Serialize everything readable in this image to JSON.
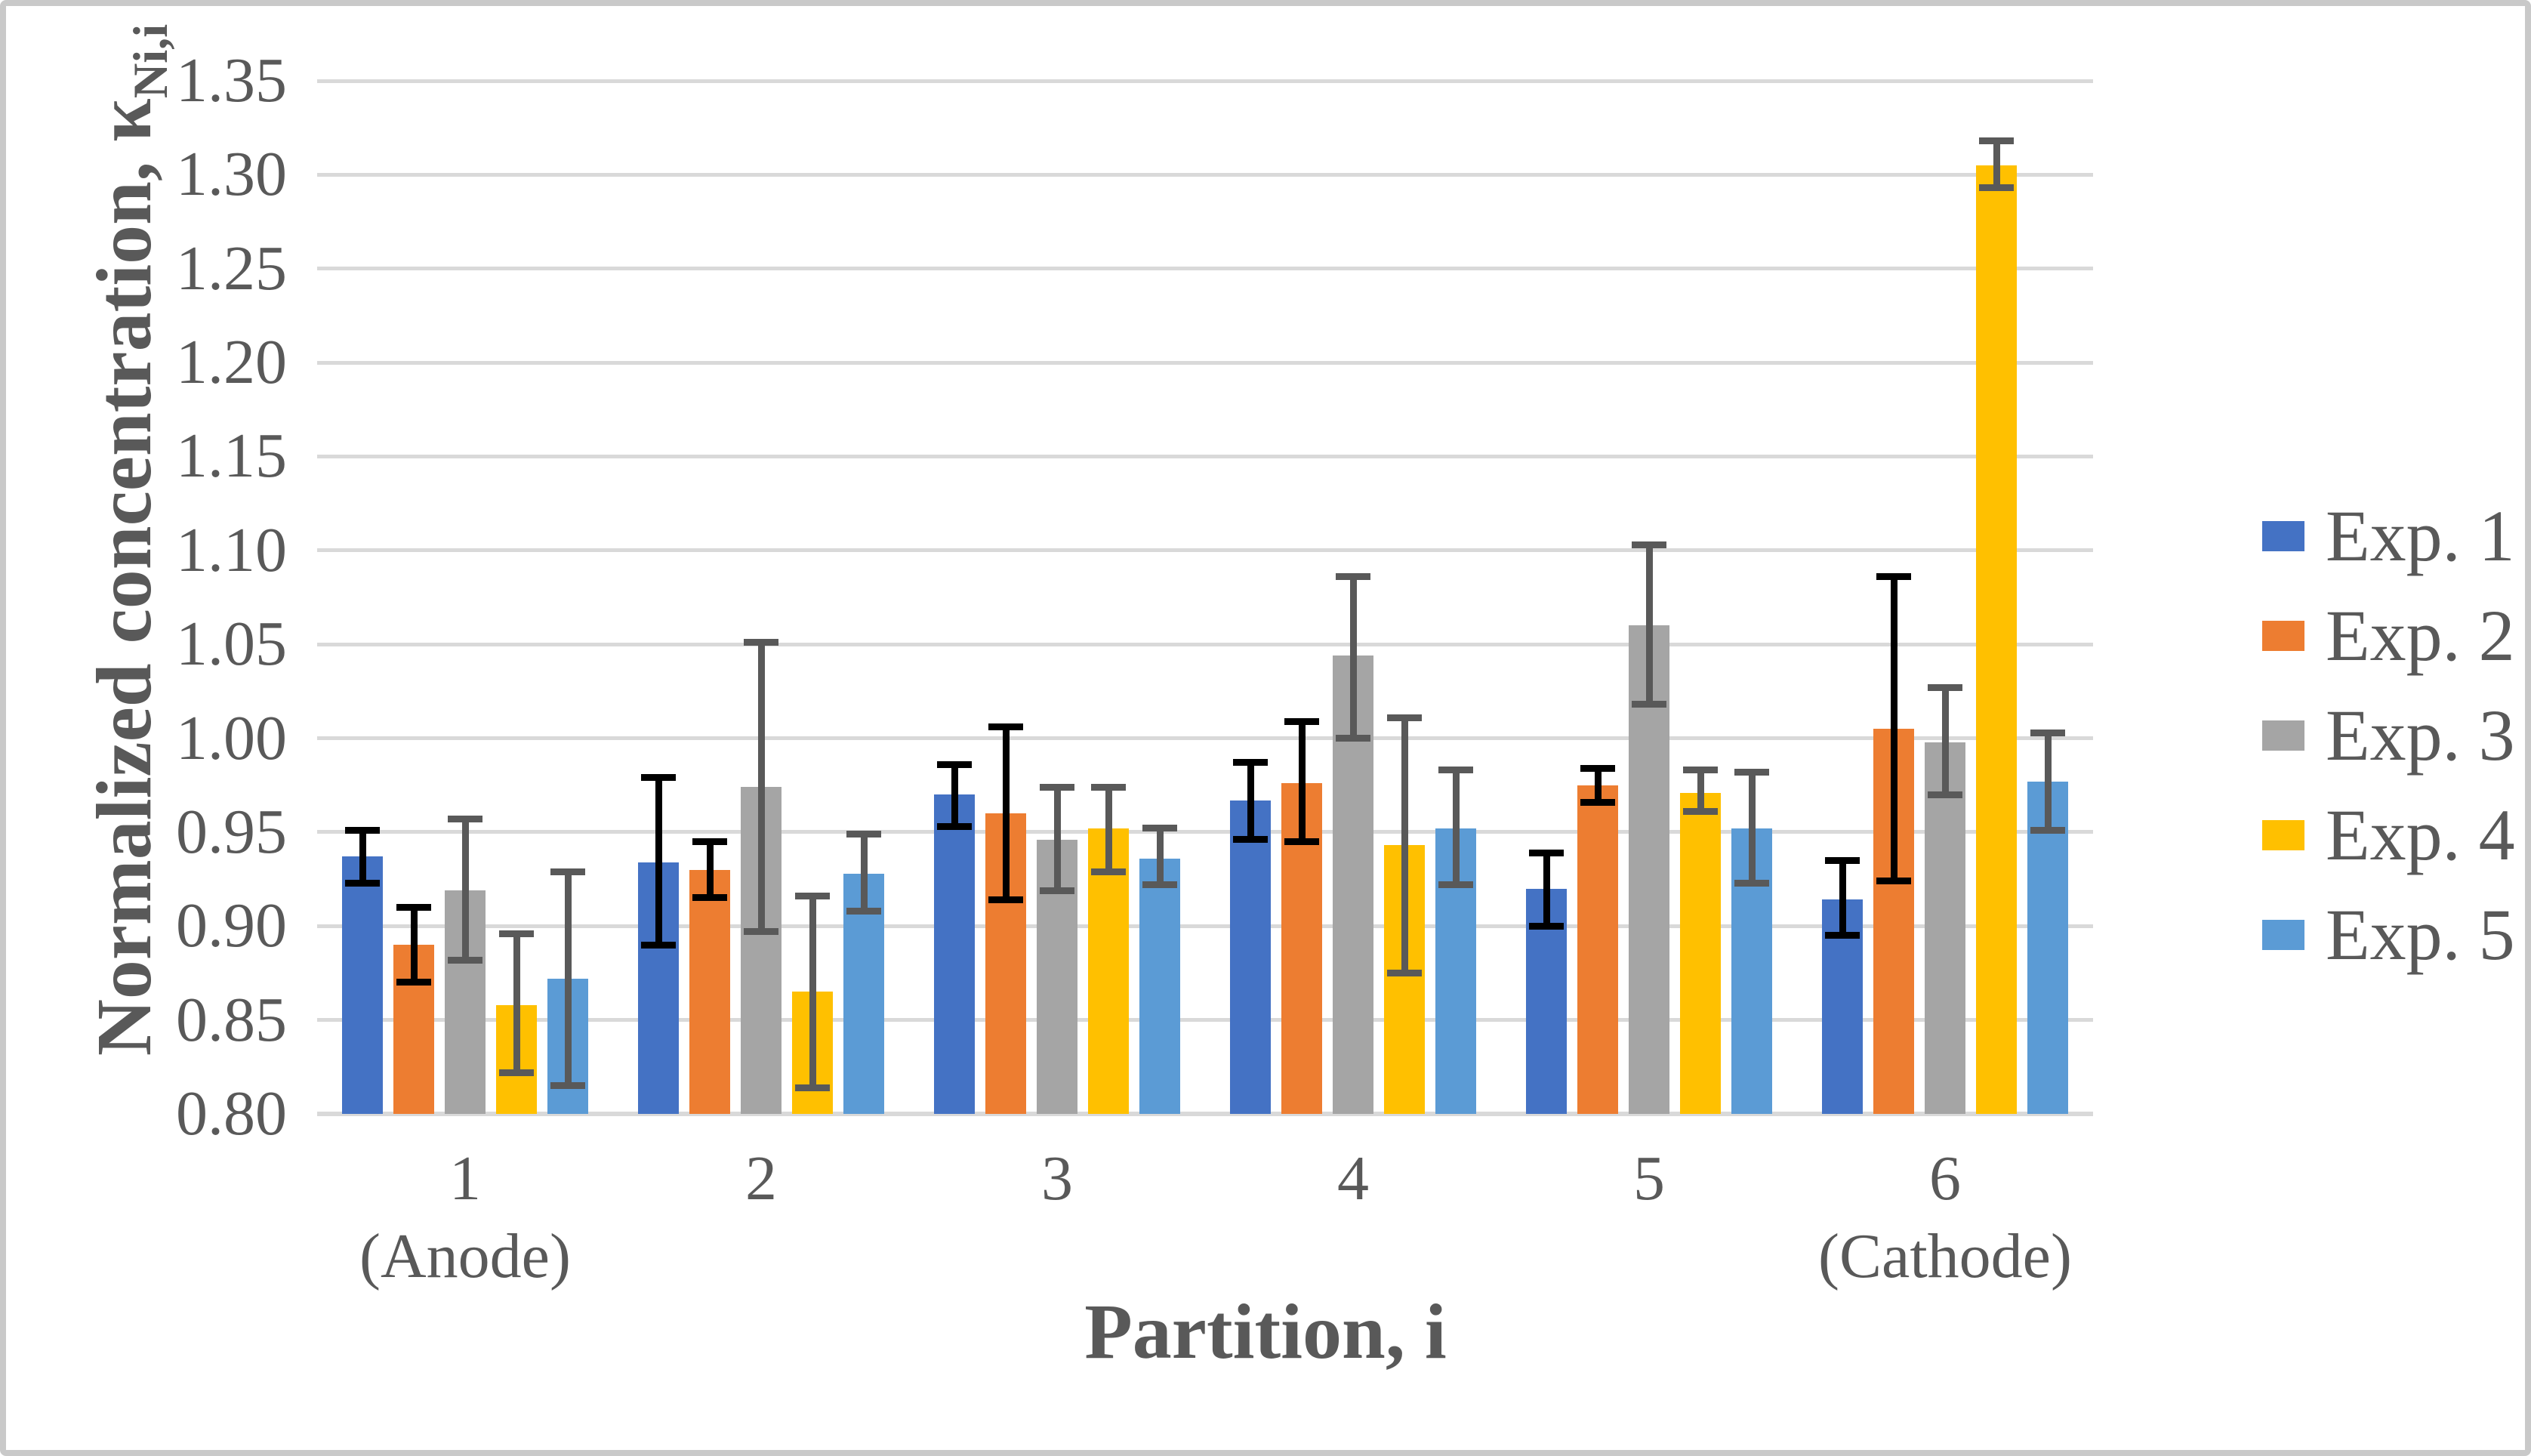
{
  "figure": {
    "background": "#ffffff",
    "border_color": "#c9c9c9",
    "text_color": "#595959",
    "gridline_color": "#d9d9d9"
  },
  "chart_data": {
    "type": "bar",
    "title": "",
    "xlabel": "Partition, i",
    "ylabel": "Normalized concentration, κ",
    "ylabel_subscript": "Ni,i",
    "ylim": [
      0.8,
      1.35
    ],
    "ytick_step": 0.05,
    "grid": true,
    "legend_position": "right",
    "yticks": [
      "0.80",
      "0.85",
      "0.90",
      "0.95",
      "1.00",
      "1.05",
      "1.10",
      "1.15",
      "1.20",
      "1.25",
      "1.30",
      "1.35"
    ],
    "categories": [
      {
        "label": "1",
        "sublabel": "(Anode)"
      },
      {
        "label": "2",
        "sublabel": ""
      },
      {
        "label": "3",
        "sublabel": ""
      },
      {
        "label": "4",
        "sublabel": ""
      },
      {
        "label": "5",
        "sublabel": ""
      },
      {
        "label": "6",
        "sublabel": "(Cathode)"
      }
    ],
    "series": [
      {
        "name": "Exp. 1",
        "color": "#4472C4",
        "error_color": "#000000",
        "values": [
          0.937,
          0.934,
          0.97,
          0.967,
          0.92,
          0.914
        ],
        "err_up": [
          0.014,
          0.045,
          0.016,
          0.02,
          0.019,
          0.021
        ],
        "err_down": [
          0.014,
          0.044,
          0.017,
          0.021,
          0.02,
          0.019
        ]
      },
      {
        "name": "Exp. 2",
        "color": "#ED7D31",
        "error_color": "#000000",
        "values": [
          0.89,
          0.93,
          0.96,
          0.976,
          0.975,
          1.005
        ],
        "err_up": [
          0.02,
          0.015,
          0.046,
          0.033,
          0.009,
          0.081
        ],
        "err_down": [
          0.02,
          0.015,
          0.046,
          0.031,
          0.009,
          0.081
        ]
      },
      {
        "name": "Exp. 3",
        "color": "#A5A5A5",
        "error_color": "#595959",
        "values": [
          0.919,
          0.974,
          0.946,
          1.044,
          1.06,
          0.998
        ],
        "err_up": [
          0.038,
          0.077,
          0.028,
          0.042,
          0.043,
          0.029
        ],
        "err_down": [
          0.037,
          0.077,
          0.027,
          0.044,
          0.042,
          0.028
        ]
      },
      {
        "name": "Exp. 4",
        "color": "#FFC000",
        "error_color": "#595959",
        "values": [
          0.858,
          0.865,
          0.952,
          0.943,
          0.971,
          1.305
        ],
        "err_up": [
          0.038,
          0.051,
          0.022,
          0.068,
          0.012,
          0.013
        ],
        "err_down": [
          0.036,
          0.051,
          0.023,
          0.068,
          0.01,
          0.012
        ]
      },
      {
        "name": "Exp. 5",
        "color": "#5B9BD5",
        "error_color": "#595959",
        "values": [
          0.872,
          0.928,
          0.936,
          0.952,
          0.952,
          0.977
        ],
        "err_up": [
          0.057,
          0.021,
          0.016,
          0.031,
          0.03,
          0.026
        ],
        "err_down": [
          0.057,
          0.02,
          0.014,
          0.03,
          0.029,
          0.026
        ]
      }
    ]
  }
}
